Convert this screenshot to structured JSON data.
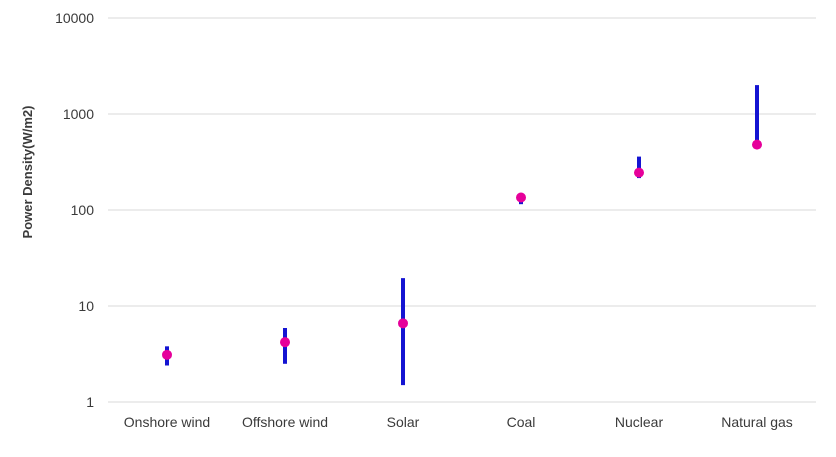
{
  "chart_data": {
    "type": "scatter",
    "title": "",
    "xlabel": "",
    "ylabel": "Power Density(W/m2)",
    "yscale": "log",
    "ylim": [
      1,
      10000
    ],
    "y_ticks": [
      "1",
      "10",
      "100",
      "1000",
      "10000"
    ],
    "y_tick_values": [
      1,
      10,
      100,
      1000,
      10000
    ],
    "grid": true,
    "legend": "none",
    "categories": [
      "Onshore wind",
      "Offshore wind",
      "Solar",
      "Coal",
      "Nuclear",
      "Natural gas"
    ],
    "series": [
      {
        "kind": "range",
        "color": "#1414d2",
        "low": [
          2.4,
          2.5,
          1.5,
          115,
          215,
          500
        ],
        "high": [
          3.8,
          5.9,
          19.5,
          140,
          360,
          2000
        ]
      },
      {
        "kind": "point",
        "color": "#e6009a",
        "values": [
          3.1,
          4.2,
          6.6,
          135,
          245,
          480
        ]
      }
    ],
    "colors": {
      "grid": "#d9d9d9",
      "text": "#3a3a3a"
    }
  }
}
